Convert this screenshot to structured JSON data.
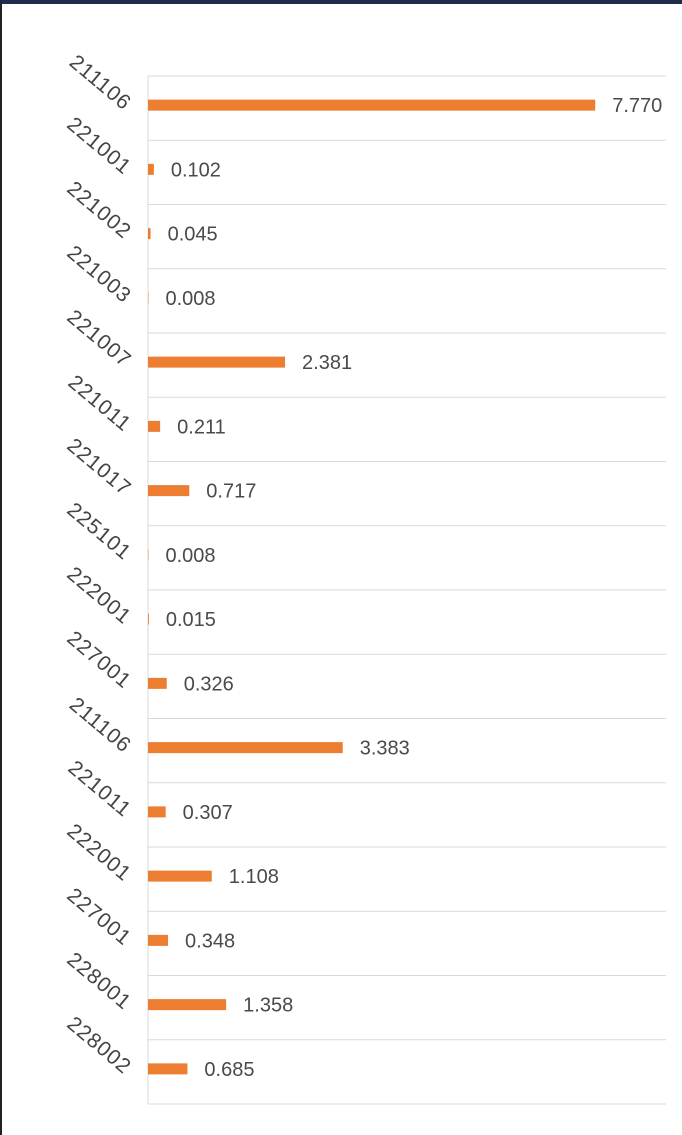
{
  "chart_data": {
    "type": "bar",
    "orientation": "horizontal",
    "categories": [
      "211106",
      "221001",
      "221002",
      "221003",
      "221007",
      "221011",
      "221017",
      "225101",
      "222001",
      "227001",
      "211106",
      "221011",
      "222001",
      "227001",
      "228001",
      "228002"
    ],
    "values": [
      7.77,
      0.102,
      0.045,
      0.008,
      2.381,
      0.211,
      0.717,
      0.008,
      0.015,
      0.326,
      3.383,
      0.307,
      1.108,
      0.348,
      1.358,
      0.685
    ],
    "value_labels": [
      "7.770",
      "0.102",
      "0.045",
      "0.008",
      "2.381",
      "0.211",
      "0.717",
      "0.008",
      "0.015",
      "0.326",
      "3.383",
      "0.307",
      "1.108",
      "0.348",
      "1.358",
      "0.685"
    ],
    "title": "",
    "xlabel": "",
    "ylabel": "",
    "xlim": [
      0,
      9
    ],
    "grid": true,
    "legend": "none",
    "bar_color": "#ed7d31",
    "grid_color": "#d9d9d9"
  }
}
